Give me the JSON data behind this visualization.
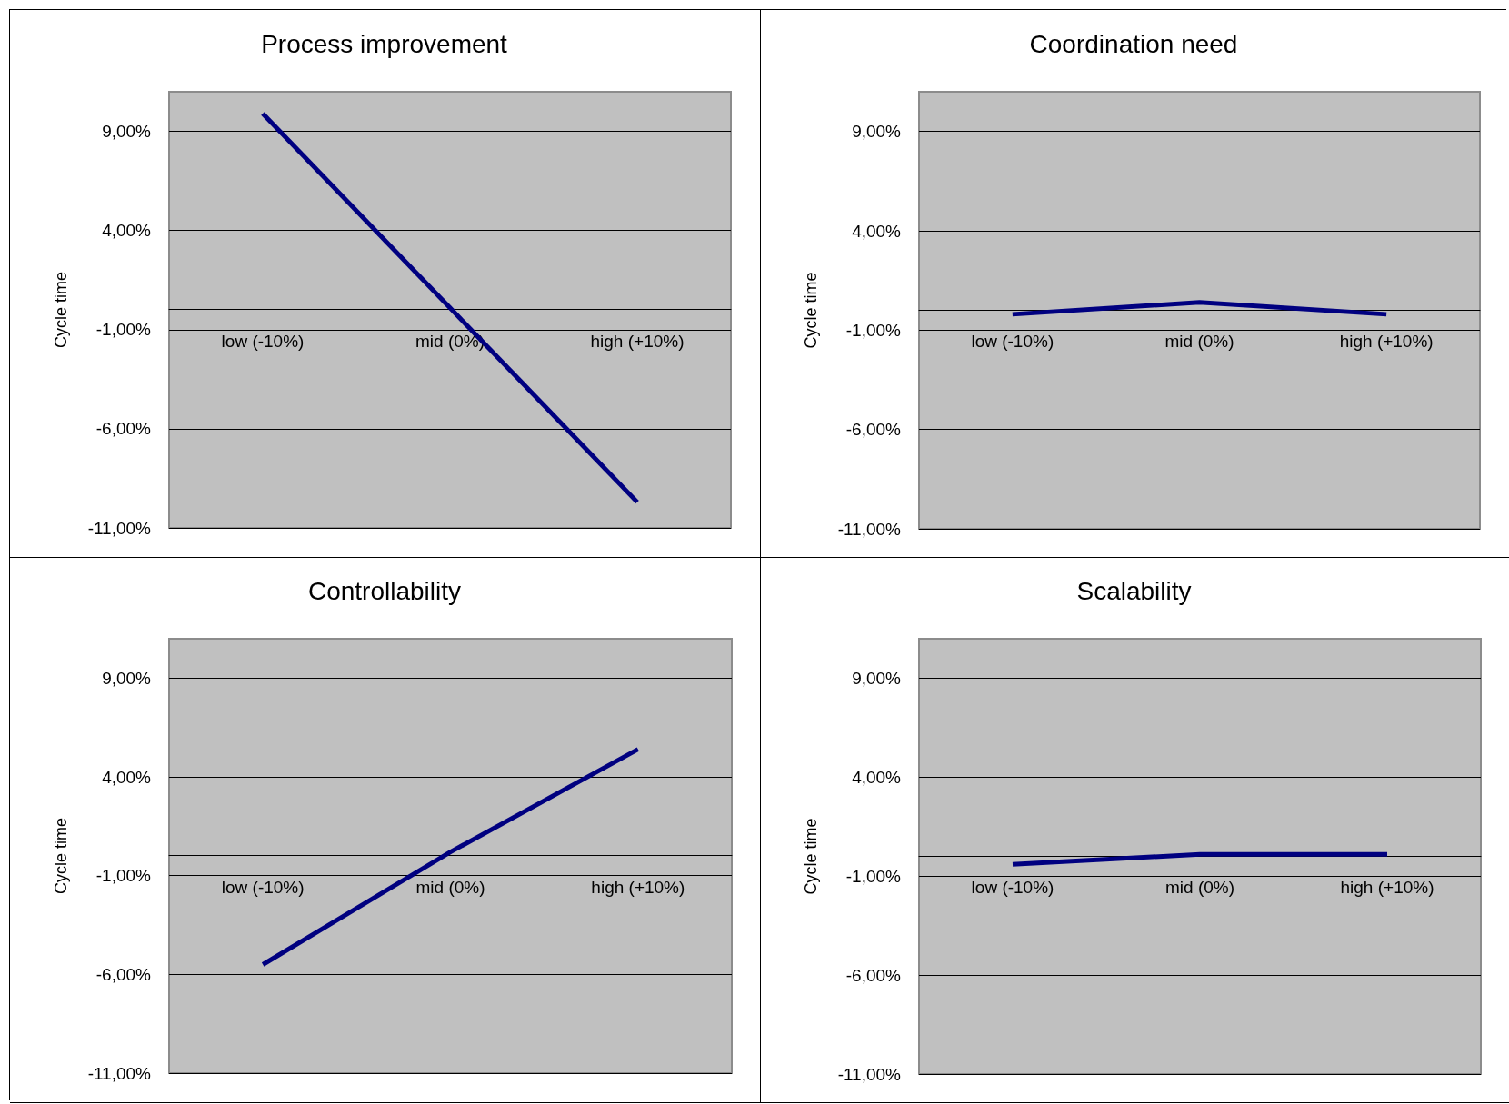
{
  "chart_data": [
    {
      "type": "line",
      "title": "Process improvement",
      "ylabel": "Cycle time",
      "categories": [
        "low (-10%)",
        "mid (0%)",
        "high (+10%)"
      ],
      "series": [
        {
          "color": "#000080",
          "values": [
            9.9,
            0.1,
            -9.7
          ]
        }
      ],
      "ylim": [
        -11,
        11
      ],
      "yticks": [
        {
          "value": -11,
          "label": "-11,00%"
        },
        {
          "value": -6,
          "label": "-6,00%"
        },
        {
          "value": -1,
          "label": "-1,00%"
        },
        {
          "value": 4,
          "label": "4,00%"
        },
        {
          "value": 9,
          "label": "9,00%"
        }
      ],
      "grid": "y"
    },
    {
      "type": "line",
      "title": "Coordination need",
      "ylabel": "Cycle time",
      "categories": [
        "low (-10%)",
        "mid (0%)",
        "high (+10%)"
      ],
      "series": [
        {
          "color": "#000080",
          "values": [
            -0.2,
            0.4,
            -0.2
          ]
        }
      ],
      "ylim": [
        -11,
        11
      ],
      "yticks": [
        {
          "value": -11,
          "label": "-11,00%"
        },
        {
          "value": -6,
          "label": "-6,00%"
        },
        {
          "value": -1,
          "label": "-1,00%"
        },
        {
          "value": 4,
          "label": "4,00%"
        },
        {
          "value": 9,
          "label": "9,00%"
        }
      ],
      "grid": "y"
    },
    {
      "type": "line",
      "title": "Controllability",
      "ylabel": "Cycle time",
      "categories": [
        "low (-10%)",
        "mid (0%)",
        "high (+10%)"
      ],
      "series": [
        {
          "color": "#000080",
          "values": [
            -5.5,
            0.2,
            5.4
          ]
        }
      ],
      "ylim": [
        -11,
        11
      ],
      "yticks": [
        {
          "value": -11,
          "label": "-11,00%"
        },
        {
          "value": -6,
          "label": "-6,00%"
        },
        {
          "value": -1,
          "label": "-1,00%"
        },
        {
          "value": 4,
          "label": "4,00%"
        },
        {
          "value": 9,
          "label": "9,00%"
        }
      ],
      "grid": "y"
    },
    {
      "type": "line",
      "title": "Scalability",
      "ylabel": "Cycle time",
      "categories": [
        "low (-10%)",
        "mid (0%)",
        "high (+10%)"
      ],
      "series": [
        {
          "color": "#000080",
          "values": [
            -0.4,
            0.1,
            0.1
          ]
        }
      ],
      "ylim": [
        -11,
        11
      ],
      "yticks": [
        {
          "value": -11,
          "label": "-11,00%"
        },
        {
          "value": -6,
          "label": "-6,00%"
        },
        {
          "value": -1,
          "label": "-1,00%"
        },
        {
          "value": 4,
          "label": "4,00%"
        },
        {
          "value": 9,
          "label": "9,00%"
        }
      ],
      "grid": "y"
    }
  ]
}
